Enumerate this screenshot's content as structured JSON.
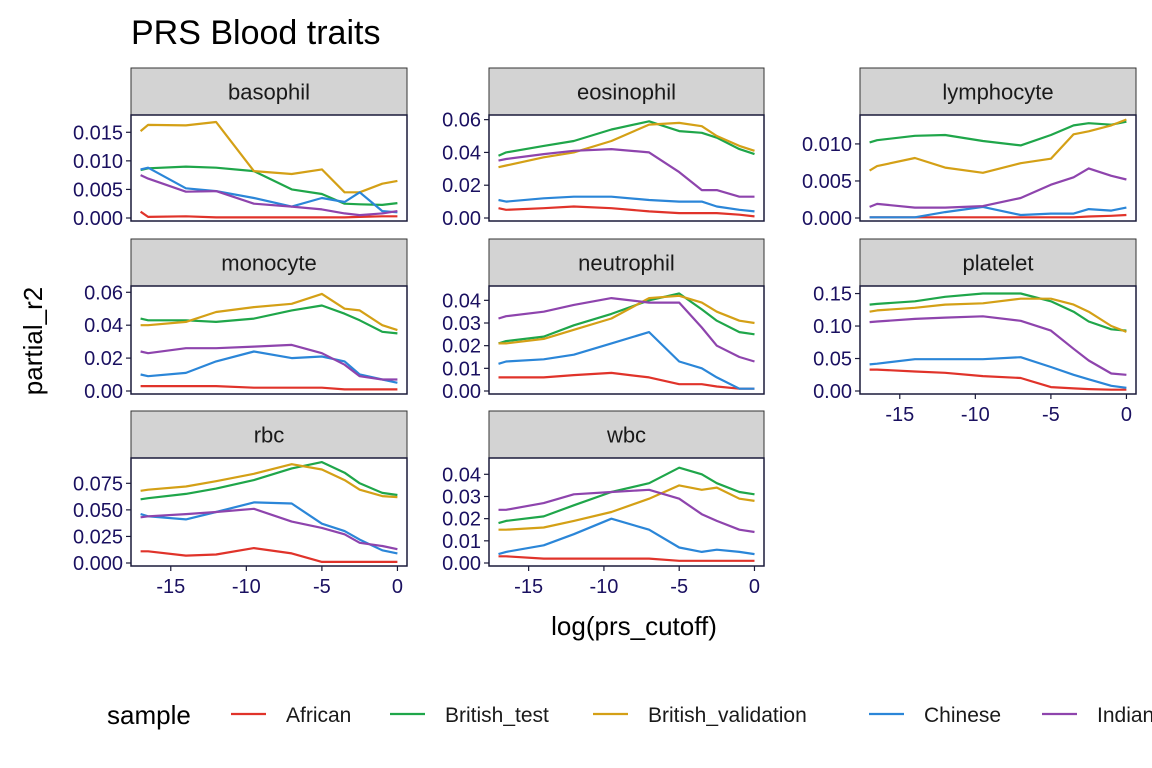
{
  "title": "PRS Blood traits",
  "xlabel": "log(prs_cutoff)",
  "ylabel": "partial_r2",
  "legend": {
    "title": "sample",
    "position": "bottom",
    "entries": [
      {
        "name": "African",
        "color": "#e0332a"
      },
      {
        "name": "British_test",
        "color": "#1fa64a"
      },
      {
        "name": "British_validation",
        "color": "#d4a016"
      },
      {
        "name": "Chinese",
        "color": "#2b86d8"
      },
      {
        "name": "Indian",
        "color": "#8e44ad"
      }
    ]
  },
  "chart_data": {
    "type": "line",
    "facet_strip_color": "#d3d3d3",
    "x_ticks": [
      -15,
      -10,
      -5,
      0
    ],
    "xlim": [
      -17.5,
      0.5
    ],
    "x": [
      -17,
      -16.5,
      -14,
      -12,
      -9.5,
      -7,
      -5,
      -3.5,
      -2.5,
      -1,
      0
    ],
    "series_names": [
      "African",
      "British_test",
      "British_validation",
      "Chinese",
      "Indian"
    ],
    "panels": [
      {
        "name": "basophil",
        "ylim": [
          0,
          0.0175
        ],
        "y_ticks": [
          "0.000",
          "0.005",
          "0.010",
          "0.015"
        ],
        "y_tick_values": [
          0,
          0.005,
          0.01,
          0.015
        ],
        "series": [
          {
            "name": "African",
            "values": [
              0.0011,
              0.0002,
              0.0003,
              0.0001,
              0.0001,
              0.0001,
              0.0001,
              0.0001,
              0.0002,
              0.0003,
              0.0003
            ]
          },
          {
            "name": "British_test",
            "values": [
              0.0084,
              0.0087,
              0.009,
              0.0088,
              0.0082,
              0.005,
              0.0042,
              0.0025,
              0.0024,
              0.0023,
              0.0026
            ]
          },
          {
            "name": "British_validation",
            "values": [
              0.0152,
              0.0163,
              0.0162,
              0.0168,
              0.0082,
              0.0077,
              0.0085,
              0.0045,
              0.0045,
              0.006,
              0.0065
            ]
          },
          {
            "name": "Chinese",
            "values": [
              0.0085,
              0.0088,
              0.0052,
              0.0047,
              0.0035,
              0.002,
              0.0035,
              0.0028,
              0.0045,
              0.0012,
              0.001
            ]
          },
          {
            "name": "Indian",
            "values": [
              0.0075,
              0.0069,
              0.0046,
              0.0047,
              0.0025,
              0.002,
              0.0015,
              0.0008,
              0.0005,
              0.0008,
              0.0012
            ]
          }
        ]
      },
      {
        "name": "eosinophil",
        "ylim": [
          0,
          0.061
        ],
        "y_ticks": [
          "0.00",
          "0.02",
          "0.04",
          "0.06"
        ],
        "y_tick_values": [
          0,
          0.02,
          0.04,
          0.06
        ],
        "series": [
          {
            "name": "African",
            "values": [
              0.006,
              0.005,
              0.006,
              0.007,
              0.006,
              0.004,
              0.003,
              0.003,
              0.003,
              0.002,
              0.001
            ]
          },
          {
            "name": "British_test",
            "values": [
              0.038,
              0.04,
              0.044,
              0.047,
              0.054,
              0.059,
              0.053,
              0.052,
              0.049,
              0.042,
              0.039
            ]
          },
          {
            "name": "British_validation",
            "values": [
              0.031,
              0.032,
              0.037,
              0.04,
              0.047,
              0.057,
              0.058,
              0.056,
              0.05,
              0.044,
              0.041
            ]
          },
          {
            "name": "Chinese",
            "values": [
              0.011,
              0.01,
              0.012,
              0.013,
              0.013,
              0.011,
              0.01,
              0.01,
              0.007,
              0.005,
              0.004
            ]
          },
          {
            "name": "Indian",
            "values": [
              0.035,
              0.036,
              0.039,
              0.041,
              0.042,
              0.04,
              0.028,
              0.017,
              0.017,
              0.013,
              0.013
            ]
          }
        ]
      },
      {
        "name": "lymphocyte",
        "ylim": [
          0,
          0.0135
        ],
        "y_ticks": [
          "0.000",
          "0.005",
          "0.010"
        ],
        "y_tick_values": [
          0,
          0.005,
          0.01
        ],
        "series": [
          {
            "name": "African",
            "values": [
              0.0001,
              0.0001,
              0.0001,
              0.0001,
              0.0001,
              0.0001,
              0.0001,
              0.0001,
              0.0002,
              0.0003,
              0.0004
            ]
          },
          {
            "name": "British_test",
            "values": [
              0.0102,
              0.0105,
              0.0111,
              0.0112,
              0.0104,
              0.0098,
              0.0112,
              0.0125,
              0.0128,
              0.0126,
              0.013
            ]
          },
          {
            "name": "British_validation",
            "values": [
              0.0064,
              0.007,
              0.0081,
              0.0068,
              0.0061,
              0.0074,
              0.008,
              0.0113,
              0.0117,
              0.0125,
              0.0133
            ]
          },
          {
            "name": "Chinese",
            "values": [
              0.0001,
              0.0001,
              0.0001,
              0.0008,
              0.0015,
              0.0004,
              0.0006,
              0.0006,
              0.0012,
              0.001,
              0.0014
            ]
          },
          {
            "name": "Indian",
            "values": [
              0.0015,
              0.0019,
              0.0014,
              0.0014,
              0.0016,
              0.0027,
              0.0045,
              0.0055,
              0.0067,
              0.0057,
              0.0052
            ]
          }
        ]
      },
      {
        "name": "monocyte",
        "ylim": [
          0,
          0.062
        ],
        "y_ticks": [
          "0.00",
          "0.02",
          "0.04",
          "0.06"
        ],
        "y_tick_values": [
          0,
          0.02,
          0.04,
          0.06
        ],
        "series": [
          {
            "name": "African",
            "values": [
              0.003,
              0.003,
              0.003,
              0.003,
              0.002,
              0.002,
              0.002,
              0.001,
              0.001,
              0.001,
              0.001
            ]
          },
          {
            "name": "British_test",
            "values": [
              0.044,
              0.043,
              0.043,
              0.042,
              0.044,
              0.049,
              0.052,
              0.047,
              0.043,
              0.036,
              0.035
            ]
          },
          {
            "name": "British_validation",
            "values": [
              0.04,
              0.04,
              0.042,
              0.048,
              0.051,
              0.053,
              0.059,
              0.05,
              0.049,
              0.04,
              0.037
            ]
          },
          {
            "name": "Chinese",
            "values": [
              0.01,
              0.009,
              0.011,
              0.018,
              0.024,
              0.02,
              0.021,
              0.018,
              0.01,
              0.007,
              0.005
            ]
          },
          {
            "name": "Indian",
            "values": [
              0.024,
              0.023,
              0.026,
              0.026,
              0.027,
              0.028,
              0.023,
              0.016,
              0.009,
              0.007,
              0.007
            ]
          }
        ]
      },
      {
        "name": "neutrophil",
        "ylim": [
          0,
          0.045
        ],
        "y_ticks": [
          "0.00",
          "0.01",
          "0.02",
          "0.03",
          "0.04"
        ],
        "y_tick_values": [
          0,
          0.01,
          0.02,
          0.03,
          0.04
        ],
        "series": [
          {
            "name": "African",
            "values": [
              0.006,
              0.006,
              0.006,
              0.007,
              0.008,
              0.006,
              0.003,
              0.003,
              0.002,
              0.001,
              0.001
            ]
          },
          {
            "name": "British_test",
            "values": [
              0.021,
              0.022,
              0.024,
              0.029,
              0.034,
              0.04,
              0.043,
              0.036,
              0.031,
              0.026,
              0.025
            ]
          },
          {
            "name": "British_validation",
            "values": [
              0.021,
              0.021,
              0.023,
              0.027,
              0.032,
              0.041,
              0.042,
              0.039,
              0.035,
              0.031,
              0.03
            ]
          },
          {
            "name": "Chinese",
            "values": [
              0.012,
              0.013,
              0.014,
              0.016,
              0.021,
              0.026,
              0.013,
              0.01,
              0.006,
              0.001,
              0.001
            ]
          },
          {
            "name": "Indian",
            "values": [
              0.032,
              0.033,
              0.035,
              0.038,
              0.041,
              0.039,
              0.039,
              0.028,
              0.02,
              0.015,
              0.013
            ]
          }
        ]
      },
      {
        "name": "platelet",
        "ylim": [
          0,
          0.157
        ],
        "y_ticks": [
          "0.00",
          "0.05",
          "0.10",
          "0.15"
        ],
        "y_tick_values": [
          0,
          0.05,
          0.1,
          0.15
        ],
        "series": [
          {
            "name": "African",
            "values": [
              0.033,
              0.033,
              0.03,
              0.028,
              0.023,
              0.02,
              0.006,
              0.004,
              0.003,
              0.002,
              0.002
            ]
          },
          {
            "name": "British_test",
            "values": [
              0.133,
              0.134,
              0.138,
              0.145,
              0.15,
              0.15,
              0.138,
              0.122,
              0.107,
              0.095,
              0.093
            ]
          },
          {
            "name": "British_validation",
            "values": [
              0.122,
              0.124,
              0.128,
              0.133,
              0.135,
              0.142,
              0.142,
              0.133,
              0.122,
              0.1,
              0.091
            ]
          },
          {
            "name": "Chinese",
            "values": [
              0.041,
              0.042,
              0.049,
              0.049,
              0.049,
              0.052,
              0.037,
              0.025,
              0.018,
              0.008,
              0.005
            ]
          },
          {
            "name": "Indian",
            "values": [
              0.106,
              0.107,
              0.111,
              0.113,
              0.115,
              0.108,
              0.093,
              0.065,
              0.047,
              0.027,
              0.025
            ]
          }
        ]
      },
      {
        "name": "rbc",
        "ylim": [
          0,
          0.096
        ],
        "y_ticks": [
          "0.000",
          "0.025",
          "0.050",
          "0.075"
        ],
        "y_tick_values": [
          0,
          0.025,
          0.05,
          0.075
        ],
        "series": [
          {
            "name": "African",
            "values": [
              0.011,
              0.011,
              0.007,
              0.008,
              0.014,
              0.009,
              0.001,
              0.001,
              0.001,
              0.001,
              0.001
            ]
          },
          {
            "name": "British_test",
            "values": [
              0.06,
              0.061,
              0.065,
              0.07,
              0.078,
              0.089,
              0.095,
              0.085,
              0.075,
              0.066,
              0.064
            ]
          },
          {
            "name": "British_validation",
            "values": [
              0.068,
              0.069,
              0.072,
              0.077,
              0.084,
              0.093,
              0.088,
              0.078,
              0.069,
              0.063,
              0.062
            ]
          },
          {
            "name": "Chinese",
            "values": [
              0.046,
              0.044,
              0.041,
              0.048,
              0.057,
              0.056,
              0.037,
              0.03,
              0.022,
              0.012,
              0.009
            ]
          },
          {
            "name": "Indian",
            "values": [
              0.043,
              0.044,
              0.046,
              0.048,
              0.051,
              0.039,
              0.033,
              0.027,
              0.019,
              0.016,
              0.013
            ]
          }
        ]
      },
      {
        "name": "wbc",
        "ylim": [
          0,
          0.046
        ],
        "y_ticks": [
          "0.00",
          "0.01",
          "0.02",
          "0.03",
          "0.04"
        ],
        "y_tick_values": [
          0,
          0.01,
          0.02,
          0.03,
          0.04
        ],
        "series": [
          {
            "name": "African",
            "values": [
              0.003,
              0.003,
              0.002,
              0.002,
              0.002,
              0.002,
              0.001,
              0.001,
              0.001,
              0.001,
              0.001
            ]
          },
          {
            "name": "British_test",
            "values": [
              0.018,
              0.019,
              0.021,
              0.026,
              0.032,
              0.036,
              0.043,
              0.04,
              0.036,
              0.032,
              0.031
            ]
          },
          {
            "name": "British_validation",
            "values": [
              0.015,
              0.015,
              0.016,
              0.019,
              0.023,
              0.029,
              0.035,
              0.033,
              0.034,
              0.029,
              0.028
            ]
          },
          {
            "name": "Chinese",
            "values": [
              0.004,
              0.005,
              0.008,
              0.013,
              0.02,
              0.015,
              0.007,
              0.005,
              0.006,
              0.005,
              0.004
            ]
          },
          {
            "name": "Indian",
            "values": [
              0.024,
              0.024,
              0.027,
              0.031,
              0.032,
              0.033,
              0.029,
              0.022,
              0.019,
              0.015,
              0.014
            ]
          }
        ]
      }
    ]
  }
}
